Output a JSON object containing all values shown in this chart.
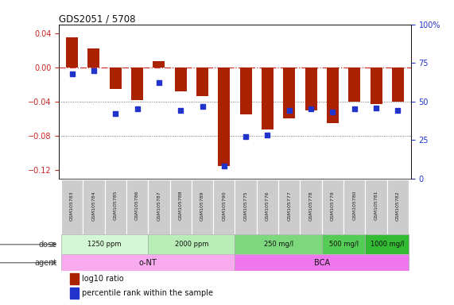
{
  "title": "GDS2051 / 5708",
  "samples": [
    "GSM105783",
    "GSM105784",
    "GSM105785",
    "GSM105786",
    "GSM105787",
    "GSM105788",
    "GSM105789",
    "GSM105790",
    "GSM105775",
    "GSM105776",
    "GSM105777",
    "GSM105778",
    "GSM105779",
    "GSM105780",
    "GSM105781",
    "GSM105782"
  ],
  "log10_ratio": [
    0.035,
    0.022,
    -0.025,
    -0.038,
    0.007,
    -0.028,
    -0.034,
    -0.115,
    -0.055,
    -0.073,
    -0.06,
    -0.05,
    -0.065,
    -0.04,
    -0.043,
    -0.04
  ],
  "percentile_rank": [
    68,
    70,
    42,
    45,
    62,
    44,
    47,
    8,
    27,
    28,
    44,
    45,
    43,
    45,
    46,
    44
  ],
  "dose_groups": [
    {
      "label": "1250 ppm",
      "start": 0,
      "end": 4,
      "color": "#d4f7d4"
    },
    {
      "label": "2000 ppm",
      "start": 4,
      "end": 8,
      "color": "#b8edb8"
    },
    {
      "label": "250 mg/l",
      "start": 8,
      "end": 12,
      "color": "#7dd87d"
    },
    {
      "label": "500 mg/l",
      "start": 12,
      "end": 14,
      "color": "#55cc55"
    },
    {
      "label": "1000 mg/l",
      "start": 14,
      "end": 16,
      "color": "#33bb33"
    }
  ],
  "agent_groups": [
    {
      "label": "o-NT",
      "start": 0,
      "end": 8,
      "color": "#f7aaee"
    },
    {
      "label": "BCA",
      "start": 8,
      "end": 16,
      "color": "#ee77ee"
    }
  ],
  "bar_color": "#aa2200",
  "dot_color": "#2233cc",
  "ylim_left": [
    -0.13,
    0.05
  ],
  "ylim_right": [
    0,
    100
  ],
  "yticks_left": [
    -0.12,
    -0.08,
    -0.04,
    0.0,
    0.04
  ],
  "yticks_right": [
    0,
    25,
    50,
    75,
    100
  ],
  "hline_color": "#cc3333",
  "dotted_color": "#555555",
  "bg_color": "#ffffff",
  "tick_color_left": "#cc2222",
  "tick_color_right": "#2233cc",
  "sample_box_color": "#cccccc",
  "label_color": "#333333"
}
